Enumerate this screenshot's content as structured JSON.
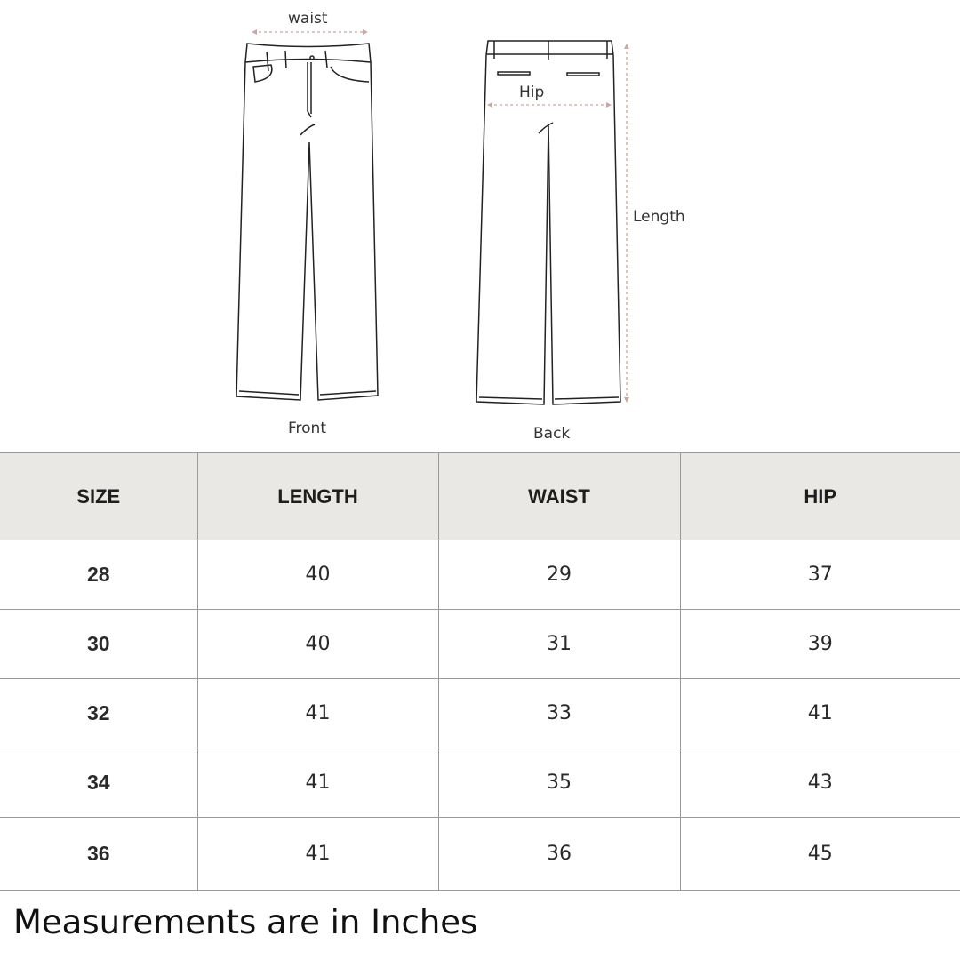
{
  "diagram": {
    "waist_label": "waist",
    "hip_label": "Hip",
    "length_label": "Length",
    "front_label": "Front",
    "back_label": "Back",
    "arrow_color": "#c9a7a2"
  },
  "table": {
    "headers": [
      "SIZE",
      "LENGTH",
      "WAIST",
      "HIP"
    ],
    "rows": [
      [
        "28",
        "40",
        "29",
        "37"
      ],
      [
        "30",
        "40",
        "31",
        "39"
      ],
      [
        "32",
        "41",
        "33",
        "41"
      ],
      [
        "34",
        "41",
        "35",
        "43"
      ],
      [
        "36",
        "41",
        "36",
        "45"
      ]
    ]
  },
  "note": "Measurements are in Inches"
}
